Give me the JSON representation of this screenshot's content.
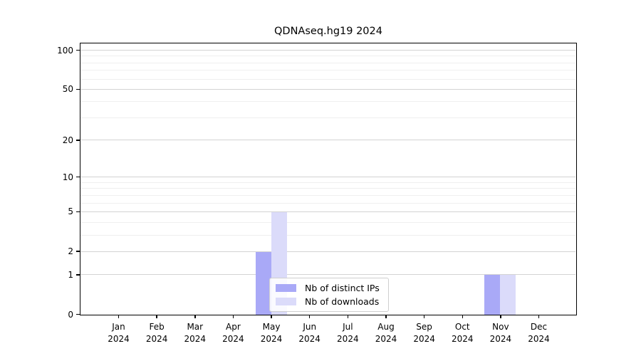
{
  "chart_data": {
    "type": "bar",
    "title": "QDNAseq.hg19 2024",
    "categories": [
      "Jan 2024",
      "Feb 2024",
      "Mar 2024",
      "Apr 2024",
      "May 2024",
      "Jun 2024",
      "Jul 2024",
      "Aug 2024",
      "Sep 2024",
      "Oct 2024",
      "Nov 2024",
      "Dec 2024"
    ],
    "series": [
      {
        "name": "Nb of distinct IPs",
        "color": "#a9a9f7",
        "values": [
          0,
          0,
          0,
          0,
          2,
          0,
          0,
          0,
          0,
          0,
          1,
          0
        ]
      },
      {
        "name": "Nb of downloads",
        "color": "#dbdbfa",
        "values": [
          0,
          0,
          0,
          0,
          5,
          0,
          0,
          0,
          0,
          0,
          1,
          0
        ]
      }
    ],
    "y_axis": {
      "scale": "log1p",
      "max": 100,
      "tick_labels": [
        0,
        1,
        2,
        5,
        10,
        20,
        50,
        100
      ],
      "minor_ticks": [
        3,
        4,
        6,
        7,
        8,
        9,
        30,
        40,
        60,
        70,
        80,
        90
      ]
    },
    "legend_position": "bottom-center",
    "grid": "on",
    "colors": {
      "grid_major": "#d3d3d3",
      "grid_minor": "#efefef",
      "axis": "#000000",
      "background": "#ffffff"
    }
  }
}
